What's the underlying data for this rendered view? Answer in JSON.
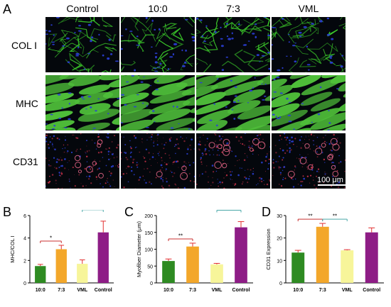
{
  "figure": {
    "panel_labels": [
      "A",
      "B",
      "C",
      "D"
    ],
    "columns": [
      "Control",
      "10:0",
      "7:3",
      "VML"
    ],
    "rows": [
      "COL I",
      "MHC",
      "CD31"
    ],
    "scale_bar_label": "100 μm",
    "colors": {
      "tile_bg": "#04070c",
      "col1_green": "#3ccd2a",
      "mhc_green": "#4fbf3a",
      "nuclei_blue": "#2b3fd8",
      "cd31_red": "#d8344c",
      "bar_green": "#2e8b22",
      "bar_orange": "#f3a72a",
      "bar_yellow": "#f7f59a",
      "bar_purple": "#8e1d86",
      "error_red": "#e23030",
      "bracket_teal": "#4aa8a8",
      "bracket_red": "#c83030"
    }
  },
  "chart_data": [
    {
      "panel": "B",
      "type": "bar",
      "categories": [
        "10:0",
        "7:3",
        "VML",
        "Control"
      ],
      "values": [
        1.5,
        3.0,
        1.7,
        4.5
      ],
      "errors": [
        0.15,
        0.35,
        0.35,
        1.0
      ],
      "bar_colors": [
        "#2e8b22",
        "#f3a72a",
        "#f7f59a",
        "#8e1d86"
      ],
      "ylabel": "MHC/COL I",
      "xlabel": "",
      "ylim": [
        0,
        6
      ],
      "yticks": [
        0,
        2,
        4,
        6
      ],
      "ytick_labels": [
        "0",
        "2",
        "4",
        "6"
      ],
      "significance": [
        {
          "from": 0,
          "to": 1,
          "label": "*"
        },
        {
          "from": 2,
          "to": 3,
          "label": "*"
        }
      ]
    },
    {
      "panel": "C",
      "type": "bar",
      "categories": [
        "10:0",
        "7:3",
        "VML",
        "Control"
      ],
      "values": [
        65,
        108,
        55,
        165
      ],
      "errors": [
        6,
        10,
        3,
        17
      ],
      "bar_colors": [
        "#2e8b22",
        "#f3a72a",
        "#f7f59a",
        "#8e1d86"
      ],
      "ylabel": "Myofiber Diameter (μm)",
      "xlabel": "",
      "ylim": [
        0,
        200
      ],
      "yticks": [
        0,
        50,
        100,
        150,
        200
      ],
      "ytick_labels": [
        "0",
        "50",
        "100",
        "150",
        "200"
      ],
      "significance": [
        {
          "from": 0,
          "to": 1,
          "label": "**"
        },
        {
          "from": 2,
          "to": 3,
          "label": "**"
        }
      ]
    },
    {
      "panel": "D",
      "type": "bar",
      "categories": [
        "10:0",
        "7:3",
        "VML",
        "Control"
      ],
      "values": [
        13.5,
        25,
        14.5,
        22.5
      ],
      "errors": [
        1,
        1.5,
        0.3,
        2
      ],
      "bar_colors": [
        "#2e8b22",
        "#f3a72a",
        "#f7f59a",
        "#8e1d86"
      ],
      "ylabel": "CD31 Expression",
      "xlabel": "",
      "ylim": [
        0,
        30
      ],
      "yticks": [
        0,
        10,
        20,
        30
      ],
      "ytick_labels": [
        "0",
        "10",
        "20",
        "30"
      ],
      "significance": [
        {
          "from": 0,
          "to": 1,
          "label": "**"
        },
        {
          "from": 1,
          "to": 2,
          "label": "**"
        }
      ]
    }
  ]
}
